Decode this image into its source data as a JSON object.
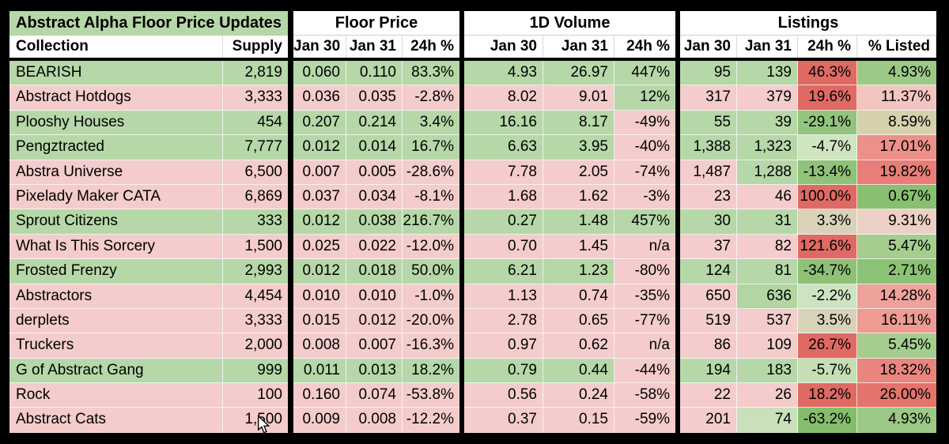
{
  "title": "Abstract Alpha Floor Price Updates",
  "sections": {
    "floor_price": "Floor Price",
    "volume": "1D Volume",
    "listings": "Listings"
  },
  "columns": {
    "collection": "Collection",
    "supply": "Supply",
    "jan30": "Jan 30",
    "jan31": "Jan 31",
    "pct24h": "24h %",
    "pct_listed": "% Listed"
  },
  "colors": {
    "positive_row": "#b6d7a8",
    "negative_row": "#f4cccc",
    "header_bg": "#ffffff",
    "strong_red": "#df6a63",
    "table_gap": "#000000"
  },
  "rows": [
    {
      "values": [
        "BEARISH",
        "2,819",
        "0.060",
        "0.110",
        "83.3%",
        "4.93",
        "26.97",
        "447%",
        "95",
        "139",
        "46.3%",
        "4.93%"
      ],
      "bg": [
        "g",
        "g",
        "g",
        "g",
        "g",
        "g",
        "g",
        "g",
        "g",
        "g",
        "#df6a63",
        "#9cc985"
      ]
    },
    {
      "values": [
        "Abstract Hotdogs",
        "3,333",
        "0.036",
        "0.035",
        "-2.8%",
        "8.02",
        "9.01",
        "12%",
        "317",
        "379",
        "19.6%",
        "11.37%"
      ],
      "bg": [
        "p",
        "p",
        "p",
        "p",
        "p",
        "p",
        "p",
        "g",
        "p",
        "p",
        "#df6a63",
        "#f2c5c1"
      ]
    },
    {
      "values": [
        "Plooshy Houses",
        "454",
        "0.207",
        "0.214",
        "3.4%",
        "16.16",
        "8.17",
        "-49%",
        "55",
        "39",
        "-29.1%",
        "8.59%"
      ],
      "bg": [
        "g",
        "g",
        "g",
        "g",
        "g",
        "g",
        "g",
        "p",
        "g",
        "g",
        "#93c47d",
        "#d7d0ad"
      ]
    },
    {
      "values": [
        "Pengztracted",
        "7,777",
        "0.012",
        "0.014",
        "16.7%",
        "6.63",
        "3.95",
        "-40%",
        "1,388",
        "1,323",
        "-4.7%",
        "17.01%"
      ],
      "bg": [
        "g",
        "g",
        "g",
        "g",
        "g",
        "g",
        "g",
        "p",
        "g",
        "g",
        "#cfe4c0",
        "#ec9089"
      ]
    },
    {
      "values": [
        "Abstra Universe",
        "6,500",
        "0.007",
        "0.005",
        "-28.6%",
        "7.78",
        "2.05",
        "-74%",
        "1,487",
        "1,288",
        "-13.4%",
        "19.82%"
      ],
      "bg": [
        "p",
        "p",
        "p",
        "p",
        "p",
        "p",
        "p",
        "p",
        "p",
        "g",
        "#90c279",
        "#e87e77"
      ]
    },
    {
      "values": [
        "Pixelady Maker CATA",
        "6,869",
        "0.037",
        "0.034",
        "-8.1%",
        "1.68",
        "1.62",
        "-3%",
        "23",
        "46",
        "100.0%",
        "0.67%"
      ],
      "bg": [
        "p",
        "p",
        "p",
        "p",
        "p",
        "p",
        "p",
        "p",
        "p",
        "p",
        "#df6a63",
        "#89bf70"
      ]
    },
    {
      "values": [
        "Sprout Citizens",
        "333",
        "0.012",
        "0.038",
        "216.7%",
        "0.27",
        "1.48",
        "457%",
        "30",
        "31",
        "3.3%",
        "9.31%"
      ],
      "bg": [
        "g",
        "g",
        "g",
        "g",
        "g",
        "g",
        "g",
        "g",
        "g",
        "g",
        "#d8d2b8",
        "#ecd0c5"
      ]
    },
    {
      "values": [
        "What Is This Sorcery",
        "1,500",
        "0.025",
        "0.022",
        "-12.0%",
        "0.70",
        "1.45",
        "n/a",
        "37",
        "82",
        "121.6%",
        "5.47%"
      ],
      "bg": [
        "p",
        "p",
        "p",
        "p",
        "p",
        "p",
        "p",
        "p",
        "p",
        "p",
        "#df6a63",
        "#a4cd8e"
      ]
    },
    {
      "values": [
        "Frosted Frenzy",
        "2,993",
        "0.012",
        "0.018",
        "50.0%",
        "6.21",
        "1.23",
        "-80%",
        "124",
        "81",
        "-34.7%",
        "2.71%"
      ],
      "bg": [
        "g",
        "g",
        "g",
        "g",
        "g",
        "g",
        "g",
        "p",
        "g",
        "g",
        "#8fc077",
        "#8cc275"
      ]
    },
    {
      "values": [
        "Abstractors",
        "4,454",
        "0.010",
        "0.010",
        "-1.0%",
        "1.13",
        "0.74",
        "-35%",
        "650",
        "636",
        "-2.2%",
        "14.28%"
      ],
      "bg": [
        "p",
        "p",
        "p",
        "p",
        "p",
        "p",
        "p",
        "p",
        "p",
        "#b2d5a2",
        "#cde4c2",
        "#efa29c"
      ]
    },
    {
      "values": [
        "derplets",
        "3,333",
        "0.015",
        "0.012",
        "-20.0%",
        "2.78",
        "0.65",
        "-77%",
        "519",
        "537",
        "3.5%",
        "16.11%"
      ],
      "bg": [
        "p",
        "p",
        "p",
        "p",
        "p",
        "p",
        "p",
        "p",
        "p",
        "p",
        "#d8d2b8",
        "#ee9b94"
      ]
    },
    {
      "values": [
        "Truckers",
        "2,000",
        "0.008",
        "0.007",
        "-16.3%",
        "0.97",
        "0.62",
        "n/a",
        "86",
        "109",
        "26.7%",
        "5.45%"
      ],
      "bg": [
        "p",
        "p",
        "p",
        "p",
        "p",
        "p",
        "p",
        "p",
        "p",
        "p",
        "#df6a63",
        "#a4cd8e"
      ]
    },
    {
      "values": [
        "G of Abstract Gang",
        "999",
        "0.011",
        "0.013",
        "18.2%",
        "0.79",
        "0.44",
        "-44%",
        "194",
        "183",
        "-5.7%",
        "18.32%"
      ],
      "bg": [
        "g",
        "g",
        "g",
        "g",
        "g",
        "g",
        "g",
        "p",
        "g",
        "g",
        "#c5deb4",
        "#ea857e"
      ]
    },
    {
      "values": [
        "Rock",
        "100",
        "0.160",
        "0.074",
        "-53.8%",
        "0.56",
        "0.24",
        "-58%",
        "22",
        "26",
        "18.2%",
        "26.00%"
      ],
      "bg": [
        "p",
        "p",
        "p",
        "p",
        "p",
        "p",
        "p",
        "p",
        "p",
        "p",
        "#df6a63",
        "#e3736b"
      ]
    },
    {
      "values": [
        "Abstract Cats",
        "1,500",
        "0.009",
        "0.008",
        "-12.2%",
        "0.37",
        "0.15",
        "-59%",
        "201",
        "74",
        "-63.2%",
        "4.93%"
      ],
      "bg": [
        "p",
        "p",
        "p",
        "p",
        "p",
        "p",
        "p",
        "p",
        "p",
        "#c9e0ba",
        "#85bd6c",
        "#9cc985"
      ]
    }
  ]
}
